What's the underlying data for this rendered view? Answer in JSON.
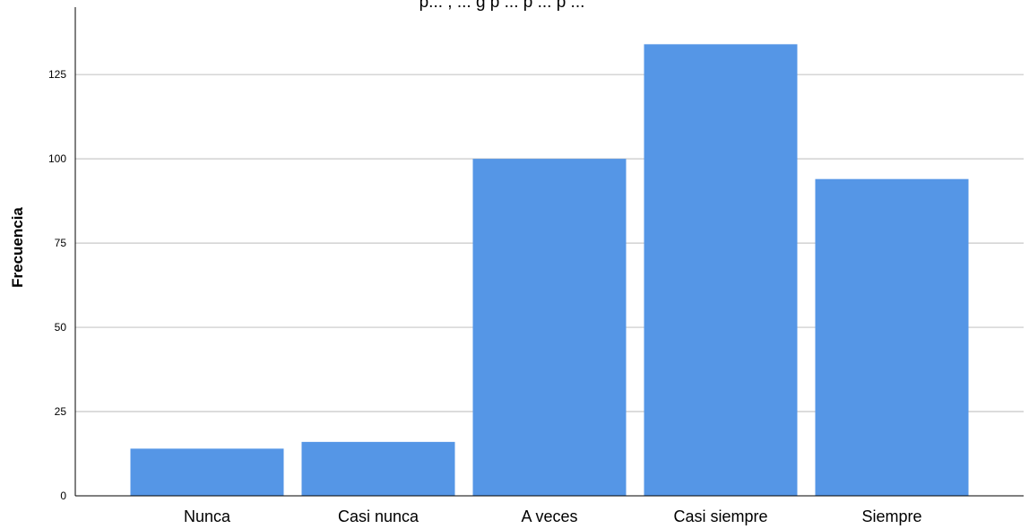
{
  "chart_data": {
    "type": "bar",
    "title": "p... , ... g p ... p ... p ...",
    "categories": [
      "Nunca",
      "Casi nunca",
      "A veces",
      "Casi siempre",
      "Siempre"
    ],
    "values": [
      14,
      16,
      100,
      134,
      94
    ],
    "xlabel": "",
    "ylabel": "Frecuencia",
    "ylim": [
      0,
      145
    ],
    "yticks": [
      0,
      25,
      50,
      75,
      100,
      125
    ],
    "grid": true,
    "legend": "none",
    "bar_color": "#5596e6"
  }
}
